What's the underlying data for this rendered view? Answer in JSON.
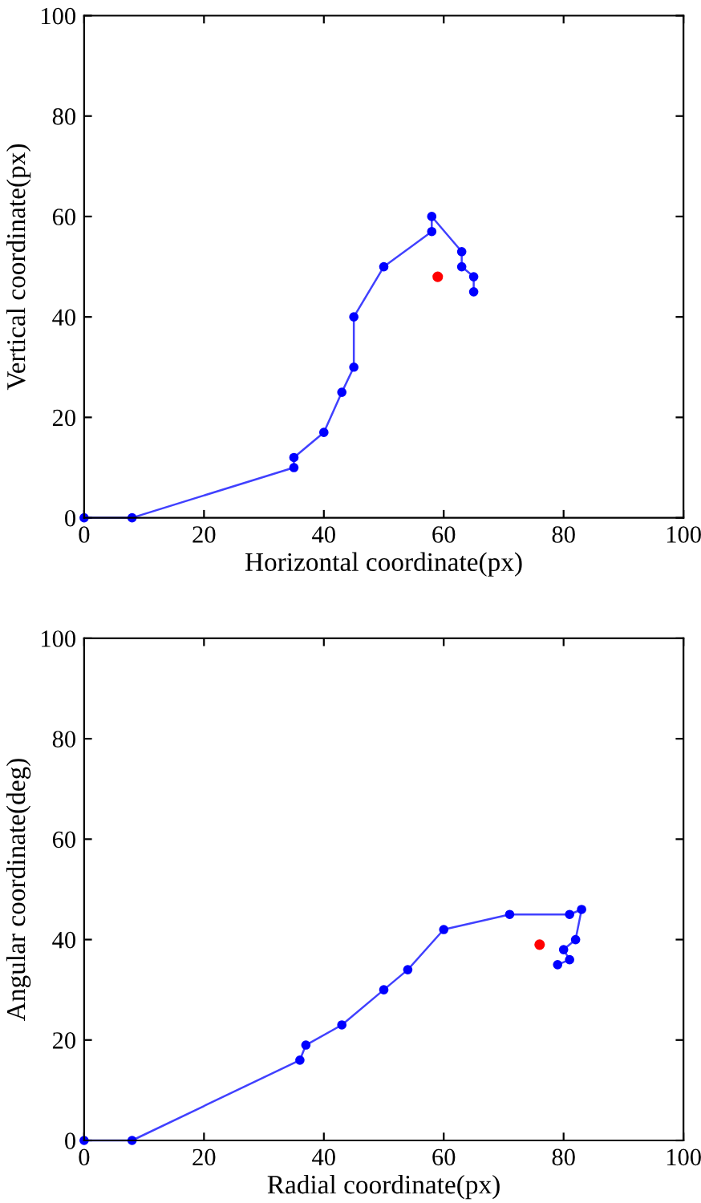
{
  "chart_data": [
    {
      "type": "line",
      "xlabel": "Horizontal coordinate(px)",
      "ylabel": "Vertical coordinate(px)",
      "xlim": [
        0,
        100
      ],
      "ylim": [
        0,
        100
      ],
      "xticks": [
        0,
        20,
        40,
        60,
        80,
        100
      ],
      "yticks": [
        0,
        20,
        40,
        60,
        80,
        100
      ],
      "grid": false,
      "legend": false,
      "marker": "circle",
      "series": [
        {
          "color": "#0000ff",
          "x": [
            0,
            8,
            35,
            35,
            40,
            43,
            45,
            45,
            50,
            58,
            58,
            63,
            63,
            65,
            65
          ],
          "values": [
            0,
            0,
            10,
            12,
            17,
            25,
            30,
            40,
            50,
            57,
            60,
            53,
            50,
            48,
            45
          ]
        },
        {
          "type": "scatter",
          "color": "#ff0000",
          "x": [
            59
          ],
          "values": [
            48
          ]
        }
      ]
    },
    {
      "type": "line",
      "xlabel": "Radial coordinate(px)",
      "ylabel": "Angular coordinate(deg)",
      "xlim": [
        0,
        100
      ],
      "ylim": [
        0,
        100
      ],
      "xticks": [
        0,
        20,
        40,
        60,
        80,
        100
      ],
      "yticks": [
        0,
        20,
        40,
        60,
        80,
        100
      ],
      "grid": false,
      "legend": false,
      "marker": "circle",
      "series": [
        {
          "color": "#0000ff",
          "x": [
            0,
            8,
            36,
            37,
            43,
            50,
            54,
            60,
            71,
            81,
            83,
            82,
            80,
            81,
            79
          ],
          "values": [
            0,
            0,
            16,
            19,
            23,
            30,
            34,
            42,
            45,
            45,
            46,
            40,
            38,
            36,
            35
          ]
        },
        {
          "type": "scatter",
          "color": "#ff0000",
          "x": [
            76
          ],
          "values": [
            39
          ]
        }
      ]
    }
  ]
}
